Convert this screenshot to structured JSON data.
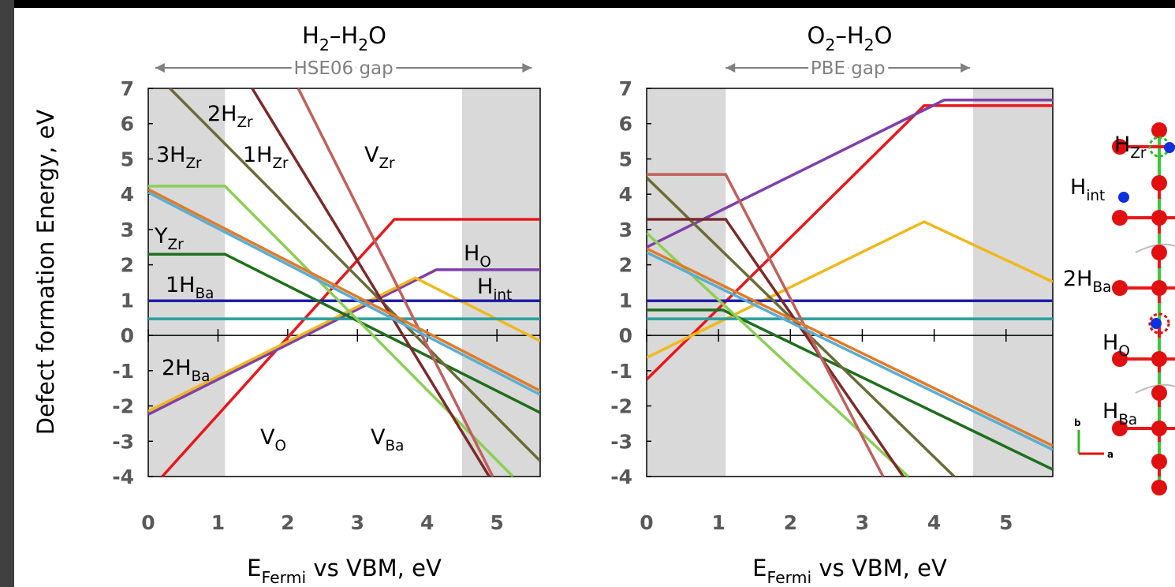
{
  "chart_data": [
    {
      "type": "line",
      "title": [
        "H",
        "2",
        "–H",
        "2",
        "O"
      ],
      "xlabel": [
        "E",
        "Fermi",
        " vs VBM, eV"
      ],
      "ylabel": "Defect formation Energy, eV",
      "xlim": [
        0,
        5.62
      ],
      "ylim": [
        -4,
        7
      ],
      "xticks": [
        0,
        1,
        2,
        3,
        4,
        5
      ],
      "yticks": [
        -4,
        -3,
        -2,
        -1,
        0,
        1,
        2,
        3,
        4,
        5,
        6,
        7
      ],
      "shaded": [
        [
          0,
          1.1
        ],
        [
          4.5,
          5.62
        ]
      ],
      "gap": {
        "label": "HSE06 gap",
        "range": [
          0.1,
          5.5
        ]
      },
      "series": [
        {
          "name": [
            "V",
            "O"
          ],
          "color": "#e8171b",
          "x": [
            0.2,
            3.53,
            5.62
          ],
          "values": [
            -4,
            3.29,
            3.29
          ]
        },
        {
          "name": [
            "H",
            "O"
          ],
          "color": "#7f3fa8",
          "x": [
            0,
            4.13,
            5.62
          ],
          "values": [
            -2.24,
            1.86,
            1.86
          ]
        },
        {
          "name": [
            "H",
            "int"
          ],
          "color": "#f0b81c",
          "x": [
            0,
            3.83,
            5.62
          ],
          "values": [
            -2.15,
            1.63,
            -0.16
          ]
        },
        {
          "color": "#1f1fa8",
          "x": [
            0,
            5.62
          ],
          "values": [
            0.98,
            0.98
          ]
        },
        {
          "name": [
            "2H",
            "Ba"
          ],
          "color": "#2a9d9d",
          "x": [
            0,
            5.62
          ],
          "values": [
            0.47,
            0.47
          ]
        },
        {
          "name": [
            "1H",
            "Ba"
          ],
          "color": "#1f6e1f",
          "x": [
            0,
            1.1,
            5.62
          ],
          "values": [
            2.3,
            2.3,
            -2.19
          ]
        },
        {
          "name": [
            "V",
            "Ba"
          ],
          "color": "#8ccf55",
          "x": [
            0,
            1.1,
            5.23
          ],
          "values": [
            4.23,
            4.23,
            -4
          ]
        },
        {
          "name": [
            "1H",
            "Zr"
          ],
          "color": "#6b6b38",
          "x": [
            0.31,
            5.62
          ],
          "values": [
            7,
            -3.56
          ]
        },
        {
          "name": [
            "2H",
            "Zr"
          ],
          "color": "#7b2a2a",
          "x": [
            1.49,
            4.89
          ],
          "values": [
            7,
            -4
          ]
        },
        {
          "name": [
            "V",
            "Zr"
          ],
          "color": "#c0605c",
          "x": [
            2.15,
            4.94
          ],
          "values": [
            7,
            -4
          ]
        },
        {
          "name": [
            "3H",
            "Zr"
          ],
          "color": "#e07b2a",
          "x": [
            0,
            5.62
          ],
          "values": [
            4.14,
            -1.57
          ]
        },
        {
          "name": [
            "Y",
            "Zr"
          ],
          "color": "#5aaed0",
          "x": [
            0,
            5.62
          ],
          "values": [
            4.05,
            -1.68
          ]
        }
      ]
    },
    {
      "type": "line",
      "title": [
        "O",
        "2",
        "–H",
        "2",
        "O"
      ],
      "xlabel": [
        "E",
        "Fermi",
        " vs VBM, eV"
      ],
      "xlim": [
        0,
        5.65
      ],
      "ylim": [
        -4,
        7
      ],
      "xticks": [
        0,
        1,
        2,
        3,
        4,
        5
      ],
      "yticks": [
        -4,
        -3,
        -2,
        -1,
        0,
        1,
        2,
        3,
        4,
        5,
        6,
        7
      ],
      "shaded": [
        [
          0,
          1.1
        ],
        [
          4.54,
          5.65
        ]
      ],
      "gap": {
        "label": "PBE gap",
        "range": [
          1.1,
          4.5
        ]
      },
      "series": [
        {
          "color": "#e8171b",
          "x": [
            0,
            3.86,
            5.65
          ],
          "values": [
            -1.25,
            6.51,
            6.51
          ]
        },
        {
          "color": "#7f3fa8",
          "x": [
            0,
            4.14,
            5.65
          ],
          "values": [
            2.5,
            6.67,
            6.67
          ]
        },
        {
          "color": "#f0b81c",
          "x": [
            0,
            3.86,
            5.65
          ],
          "values": [
            -0.63,
            3.22,
            1.52
          ]
        },
        {
          "color": "#1f1fa8",
          "x": [
            0,
            5.65
          ],
          "values": [
            0.98,
            0.98
          ]
        },
        {
          "color": "#2a9d9d",
          "x": [
            0,
            5.65
          ],
          "values": [
            0.47,
            0.47
          ]
        },
        {
          "color": "#1f6e1f",
          "x": [
            0,
            1.06,
            5.65
          ],
          "values": [
            0.72,
            0.72,
            -3.8
          ]
        },
        {
          "color": "#8ccf55",
          "x": [
            0,
            3.64
          ],
          "values": [
            2.9,
            -4
          ]
        },
        {
          "color": "#6b6b38",
          "x": [
            0,
            4.28
          ],
          "values": [
            4.47,
            -4
          ]
        },
        {
          "color": "#7b2a2a",
          "x": [
            0,
            1.1,
            3.57
          ],
          "values": [
            3.29,
            3.29,
            -4
          ]
        },
        {
          "color": "#c0605c",
          "x": [
            0,
            1.1,
            3.29
          ],
          "values": [
            4.56,
            4.56,
            -4
          ]
        },
        {
          "color": "#e07b2a",
          "x": [
            0,
            5.65
          ],
          "values": [
            2.46,
            -3.13
          ]
        },
        {
          "color": "#5aaed0",
          "x": [
            0,
            5.65
          ],
          "values": [
            2.35,
            -3.24
          ]
        }
      ]
    }
  ],
  "structure": {
    "labels": [
      [
        "H",
        "Zr"
      ],
      [
        "H",
        "int"
      ],
      [
        "2H",
        "Ba"
      ],
      [
        "H",
        "O"
      ],
      [
        "H",
        "Ba"
      ],
      [
        "b"
      ],
      [
        "a"
      ]
    ]
  }
}
